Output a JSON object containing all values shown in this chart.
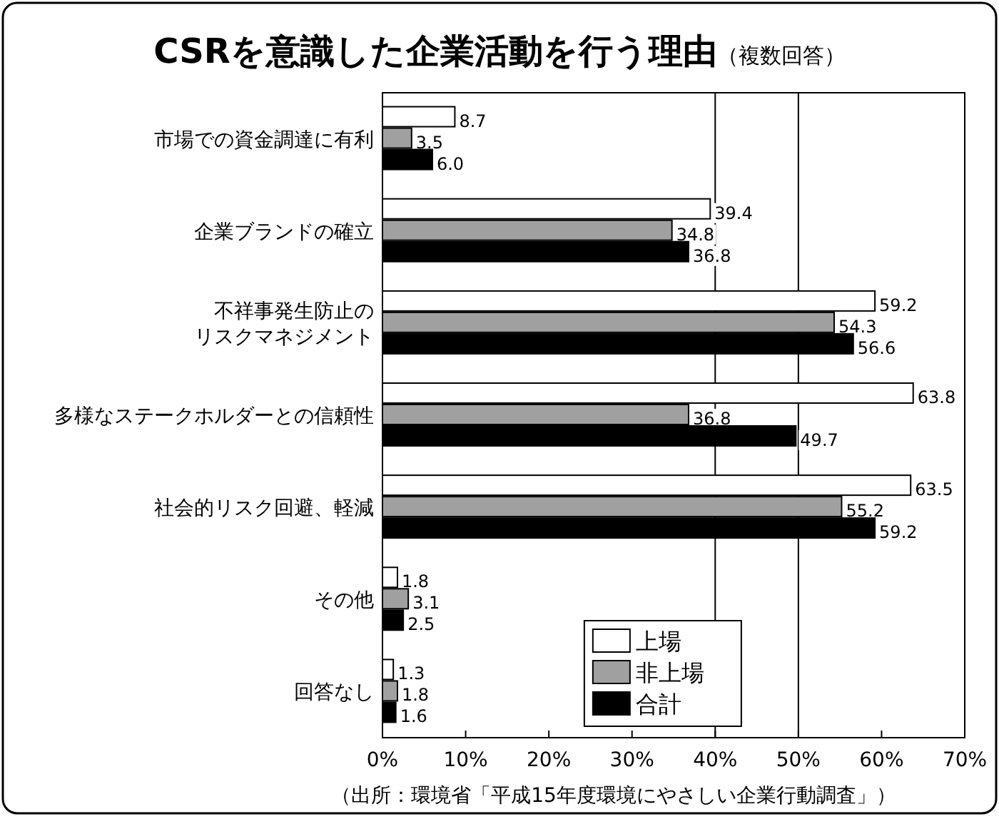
{
  "chart_data": {
    "type": "bar",
    "orientation": "horizontal",
    "title": "CSRを意識した企業活動を行う理由",
    "subtitle": "（複数回答）",
    "categories": [
      "市場での資金調達に有利",
      "企業ブランドの確立",
      "不祥事発生防止のリスクマネジメント",
      "多様なステークホルダーとの信頼性",
      "社会的リスク回避、軽減",
      "その他",
      "回答なし"
    ],
    "series": [
      {
        "name": "上場",
        "color": "#ffffff",
        "values": [
          8.7,
          39.4,
          59.2,
          63.8,
          63.5,
          1.8,
          1.3
        ],
        "value_labels": [
          "8.7",
          "39.4",
          "59.2",
          "63.8",
          "63.5",
          "1.8",
          "1.3"
        ]
      },
      {
        "name": "非上場",
        "color": "#a0a0a0",
        "values": [
          3.5,
          34.8,
          54.3,
          36.8,
          55.2,
          3.1,
          1.8
        ],
        "value_labels": [
          "3.5",
          "34.8",
          "54.3",
          "36.8",
          "55.2",
          "3.1",
          "1.8"
        ]
      },
      {
        "name": "合計",
        "color": "#000000",
        "values": [
          6.0,
          36.8,
          56.6,
          49.7,
          59.2,
          2.5,
          1.6
        ],
        "value_labels": [
          "6.0",
          "36.8",
          "56.6",
          "49.7",
          "59.2",
          "2.5",
          "1.6"
        ]
      }
    ],
    "xlim": [
      0,
      70
    ],
    "xticks": [
      {
        "value": 0,
        "label": "0%"
      },
      {
        "value": 10,
        "label": "10%"
      },
      {
        "value": 20,
        "label": "20%"
      },
      {
        "value": 30,
        "label": "30%"
      },
      {
        "value": 40,
        "label": "40%"
      },
      {
        "value": 50,
        "label": "50%"
      },
      {
        "value": 60,
        "label": "60%"
      },
      {
        "value": 70,
        "label": "70%"
      }
    ],
    "ref_lines": [
      {
        "axis": "x",
        "value": 40
      },
      {
        "axis": "x",
        "value": 50
      }
    ],
    "legend": "bottom right",
    "annotations": [
      "（出所：環境省「平成15年度環境にやさしい企業行動調査」）"
    ]
  }
}
